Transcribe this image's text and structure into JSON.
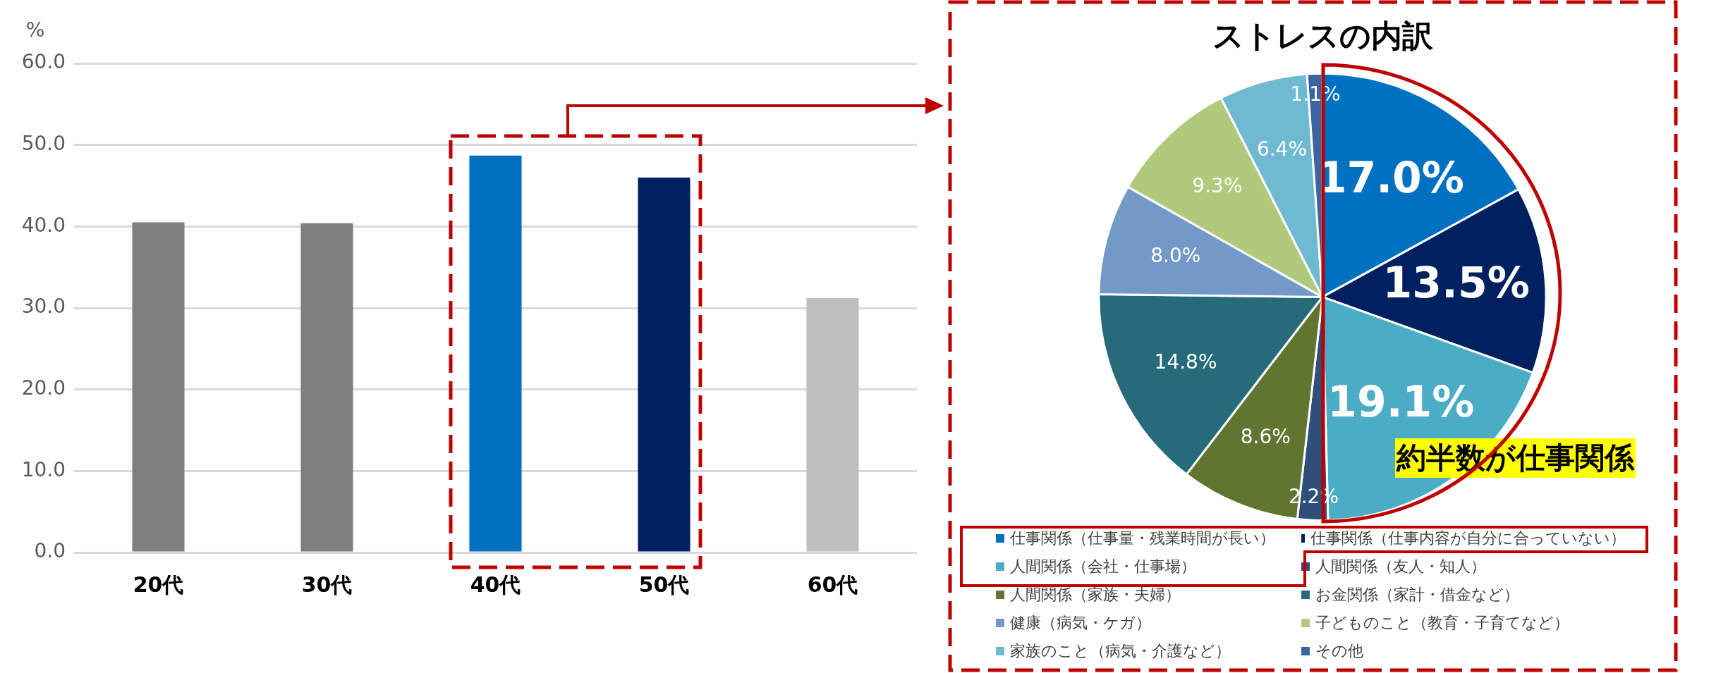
{
  "chart_data": [
    {
      "type": "bar",
      "ylabel": "%",
      "categories": [
        "20代",
        "30代",
        "40代",
        "50代",
        "60代"
      ],
      "values": [
        40.5,
        40.4,
        48.7,
        46.0,
        31.2
      ],
      "colors": [
        "#7f7f7f",
        "#7f7f7f",
        "#0070c0",
        "#002060",
        "#bfbfbf"
      ],
      "ylim": [
        0,
        60
      ],
      "yticks": [
        {
          "value": 0,
          "label": "0.0"
        },
        {
          "value": 10,
          "label": "10.0"
        },
        {
          "value": 20,
          "label": "20.0"
        },
        {
          "value": 30,
          "label": "30.0"
        },
        {
          "value": 40,
          "label": "40.0"
        },
        {
          "value": 50,
          "label": "50.0"
        },
        {
          "value": 60,
          "label": "60.0"
        }
      ],
      "grid": "y",
      "legend": false
    },
    {
      "type": "pie",
      "title": "ストレスの内訳",
      "categories": [
        "仕事関係（仕事量・残業時間が長い）",
        "仕事関係（仕事内容が自分に合っていない）",
        "人間関係（会社・仕事場）",
        "人間関係（友人・知人）",
        "人間関係（家族・夫婦）",
        "お金関係（家計・借金など）",
        "健康（病気・ケガ）",
        "子どものこと（教育・子育てなど）",
        "家族のこと（病気・介護など）",
        "その他"
      ],
      "values": [
        17.0,
        13.5,
        19.1,
        2.2,
        8.6,
        14.8,
        8.0,
        9.3,
        6.4,
        1.1
      ],
      "colors": [
        "#0070c0",
        "#002060",
        "#4bacc6",
        "#2f4e79",
        "#60752f",
        "#276b7a",
        "#7399c9",
        "#b0c97c",
        "#6fbad0",
        "#3b64a0"
      ],
      "value_labels": [
        "17.0%",
        "13.5%",
        "19.1%",
        "2.2%",
        "8.6%",
        "14.8%",
        "8.0%",
        "9.3%",
        "6.4%",
        "1.1%"
      ],
      "legend": "bottom",
      "annotations": [
        "約半数が仕事関係"
      ]
    }
  ]
}
